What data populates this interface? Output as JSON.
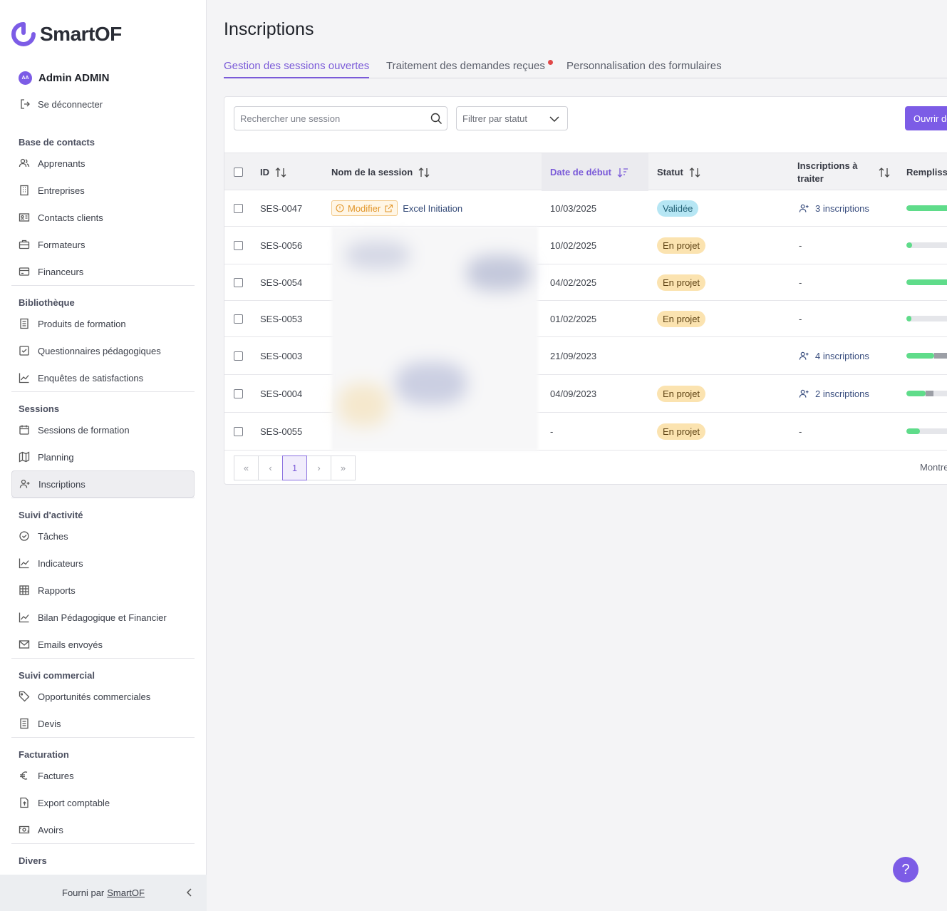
{
  "brand": {
    "name": "SmartOF",
    "accent": "#7c5ce6"
  },
  "user": {
    "initials": "AA",
    "name": "Admin ADMIN",
    "logout_label": "Se déconnecter"
  },
  "sidebar": {
    "sections": [
      {
        "title": "Base de contacts",
        "items": [
          {
            "label": "Apprenants",
            "icon": "users-icon"
          },
          {
            "label": "Entreprises",
            "icon": "building-icon"
          },
          {
            "label": "Contacts clients",
            "icon": "id-card-icon"
          },
          {
            "label": "Formateurs",
            "icon": "briefcase-icon"
          },
          {
            "label": "Financeurs",
            "icon": "credit-card-icon"
          }
        ]
      },
      {
        "title": "Bibliothèque",
        "items": [
          {
            "label": "Produits de formation",
            "icon": "document-icon"
          },
          {
            "label": "Questionnaires pédagogiques",
            "icon": "checkbox-icon"
          },
          {
            "label": "Enquêtes de satisfactions",
            "icon": "chart-line-icon"
          }
        ]
      },
      {
        "title": "Sessions",
        "items": [
          {
            "label": "Sessions de formation",
            "icon": "calendar-icon"
          },
          {
            "label": "Planning",
            "icon": "map-icon"
          },
          {
            "label": "Inscriptions",
            "icon": "user-plus-icon"
          }
        ]
      },
      {
        "title": "Suivi d'activité",
        "items": [
          {
            "label": "Tâches",
            "icon": "check-circle-icon"
          },
          {
            "label": "Indicateurs",
            "icon": "chart-line-icon"
          },
          {
            "label": "Rapports",
            "icon": "grid-icon"
          },
          {
            "label": "Bilan Pédagogique et Financier",
            "icon": "chart-line-icon"
          },
          {
            "label": "Emails envoyés",
            "icon": "mail-icon"
          }
        ]
      },
      {
        "title": "Suivi commercial",
        "items": [
          {
            "label": "Opportunités commerciales",
            "icon": "tag-icon"
          },
          {
            "label": "Devis",
            "icon": "document-icon"
          }
        ]
      },
      {
        "title": "Facturation",
        "items": [
          {
            "label": "Factures",
            "icon": "euro-icon"
          },
          {
            "label": "Export comptable",
            "icon": "file-export-icon"
          },
          {
            "label": "Avoirs",
            "icon": "banknote-icon"
          }
        ]
      },
      {
        "title": "Divers",
        "items": []
      }
    ],
    "active_item": "Inscriptions",
    "footer": {
      "prefix": "Fourni par",
      "link": "SmartOF"
    }
  },
  "page": {
    "title": "Inscriptions",
    "tabs": [
      {
        "label": "Gestion des sessions ouvertes",
        "active": true
      },
      {
        "label": "Traitement des demandes reçues",
        "active": false,
        "notification_dot": true
      },
      {
        "label": "Personnalisation des formulaires",
        "active": false
      }
    ],
    "search": {
      "placeholder": "Rechercher une session",
      "value": ""
    },
    "filter": {
      "placeholder": "Filtrer par statut"
    },
    "open_button_label": "Ouvrir de"
  },
  "table": {
    "columns": [
      {
        "label": "ID",
        "sortable": true
      },
      {
        "label": "Nom de la session",
        "sortable": true
      },
      {
        "label": "Date de début",
        "sortable": true,
        "sorted": "desc"
      },
      {
        "label": "Statut",
        "sortable": true
      },
      {
        "label": "Inscriptions à traiter",
        "sortable": true
      },
      {
        "label": "Remplissa",
        "sortable": false
      }
    ],
    "rows": [
      {
        "id": "SES-0047",
        "modify_label": "Modifier",
        "name": "Excel Initiation",
        "date": "10/03/2025",
        "status": "Validée",
        "inscriptions": "3 inscriptions",
        "fill": 0.9,
        "fill_grey": 0
      },
      {
        "id": "SES-0056",
        "modify_label": "",
        "name": "",
        "date": "10/02/2025",
        "status": "En projet",
        "inscriptions": "-",
        "fill": 0.12,
        "fill_grey": 0
      },
      {
        "id": "SES-0054",
        "modify_label": "",
        "name": "",
        "date": "04/02/2025",
        "status": "En projet",
        "inscriptions": "-",
        "fill": 0.9,
        "fill_grey": 0
      },
      {
        "id": "SES-0053",
        "modify_label": "",
        "name": "",
        "date": "01/02/2025",
        "status": "En projet",
        "inscriptions": "-",
        "fill": 0.1,
        "fill_grey": 0
      },
      {
        "id": "SES-0003",
        "modify_label": "",
        "name": "",
        "date": "21/09/2023",
        "status": "",
        "inscriptions": "4 inscriptions",
        "fill": 0.55,
        "fill_grey": 0.45
      },
      {
        "id": "SES-0004",
        "modify_label": "",
        "name": "",
        "date": "04/09/2023",
        "status": "En projet",
        "inscriptions": "2 inscriptions",
        "fill": 0.38,
        "fill_grey": 0.16
      },
      {
        "id": "SES-0055",
        "modify_label": "",
        "name": "",
        "date": "-",
        "status": "En projet",
        "inscriptions": "-",
        "fill": 0.27,
        "fill_grey": 0
      }
    ]
  },
  "pagination": {
    "first": "«",
    "prev": "‹",
    "current": "1",
    "next": "›",
    "last": "»",
    "info": "Montre"
  },
  "help_label": "?",
  "colors": {
    "validee": "#b6e6f4",
    "en_projet": "#fbe3b0",
    "progress": "#5fdc8a"
  }
}
